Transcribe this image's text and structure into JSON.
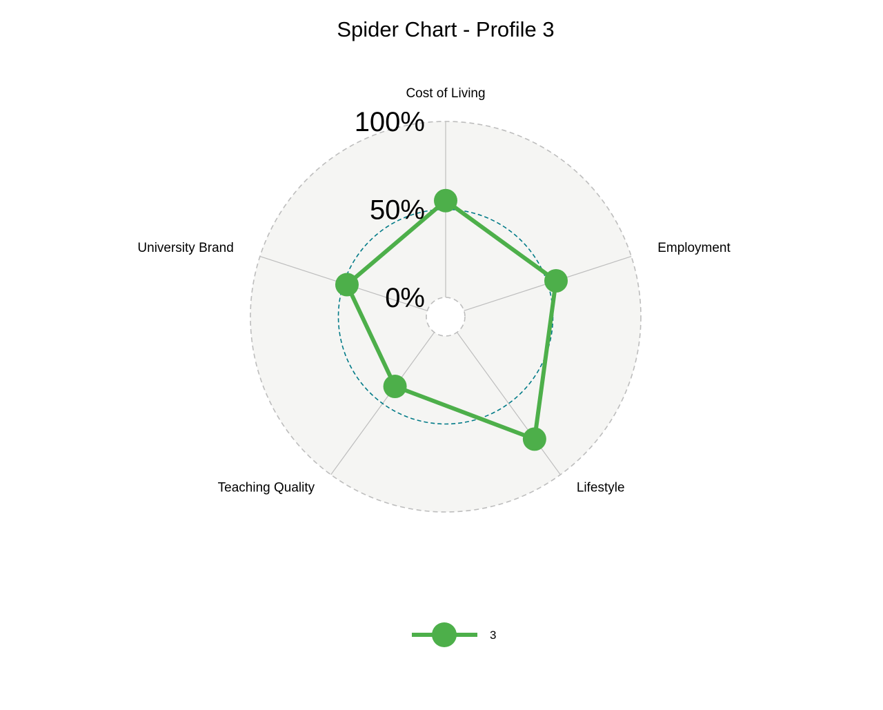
{
  "chart_data": {
    "type": "radar",
    "title": "Spider Chart - Profile 3",
    "axes": [
      "Cost of Living",
      "Employment",
      "Lifestyle",
      "Teaching Quality",
      "University Brand"
    ],
    "grid_labels": [
      "0%",
      "50%",
      "100%"
    ],
    "grid_values": [
      0,
      0.5,
      1
    ],
    "range": [
      0,
      1
    ],
    "series": [
      {
        "name": "3",
        "values": [
          0.55,
          0.55,
          0.75,
          0.38,
          0.48
        ]
      }
    ],
    "legend": {
      "position": "bottom"
    },
    "colors": {
      "series": "#4daf4a",
      "panel": "#f5f5f3",
      "grid_outer": "#bdbdbd",
      "grid_mid": "#007a87",
      "axis_line": "#bdbdbd"
    }
  }
}
